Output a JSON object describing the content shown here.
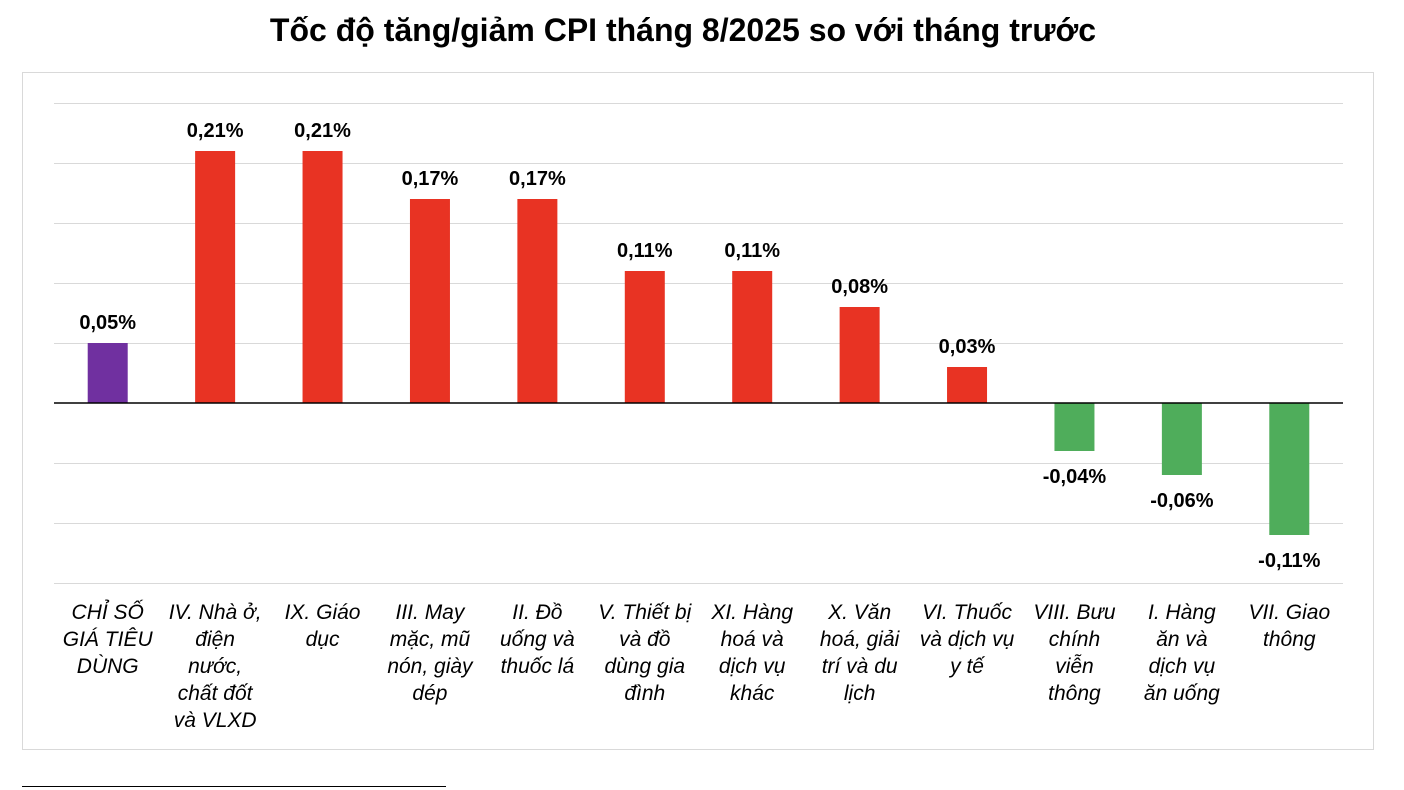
{
  "chart_data": {
    "type": "bar",
    "title": "Tốc độ tăng/giảm CPI tháng 8/2025 so với tháng trước",
    "categories": [
      "CHỈ SỐ GIÁ TIÊU DÙNG",
      "IV. Nhà ở, điện nước, chất đốt và VLXD",
      "IX. Giáo dục",
      "III. May mặc, mũ nón, giày dép",
      "II. Đồ uống và thuốc lá",
      "V. Thiết bị và đồ dùng gia đình",
      "XI. Hàng hoá và dịch vụ khác",
      "X. Văn hoá, giải trí và du lịch",
      "VI. Thuốc và dịch vụ y tế",
      "VIII. Bưu chính viễn thông",
      "I. Hàng ăn và dịch vụ ăn uống",
      "VII. Giao thông"
    ],
    "category_lines": [
      [
        "CHỈ SỐ",
        "GIÁ TIÊU",
        "DÙNG"
      ],
      [
        "IV. Nhà ở,",
        "điện",
        "nước,",
        "chất đốt",
        "và VLXD"
      ],
      [
        "IX. Giáo",
        "dục"
      ],
      [
        "III. May",
        "mặc, mũ",
        "nón, giày",
        "dép"
      ],
      [
        "II. Đồ",
        "uống và",
        "thuốc lá"
      ],
      [
        "V. Thiết bị",
        "và đồ",
        "dùng gia",
        "đình"
      ],
      [
        "XI. Hàng",
        "hoá và",
        "dịch vụ",
        "khác"
      ],
      [
        "X. Văn",
        "hoá, giải",
        "trí và du",
        "lịch"
      ],
      [
        "VI. Thuốc",
        "và dịch vụ",
        "y tế"
      ],
      [
        "VIII. Bưu",
        "chính",
        "viễn",
        "thông"
      ],
      [
        "I. Hàng",
        "ăn và",
        "dịch vụ",
        "ăn uống"
      ],
      [
        "VII. Giao",
        "thông"
      ]
    ],
    "values": [
      0.05,
      0.21,
      0.21,
      0.17,
      0.17,
      0.11,
      0.11,
      0.08,
      0.03,
      -0.04,
      -0.06,
      -0.11
    ],
    "value_labels": [
      "0,05%",
      "0,21%",
      "0,21%",
      "0,17%",
      "0,17%",
      "0,11%",
      "0,11%",
      "0,08%",
      "0,03%",
      "-0,04%",
      "-0,06%",
      "-0,11%"
    ],
    "ylim": [
      -0.15,
      0.25
    ],
    "grid": true,
    "legend": "none",
    "colors": {
      "total": "#7030a0",
      "positive": "#e83323",
      "negative": "#4fad5b",
      "grid": "#d9d9d9",
      "axis": "#000000"
    }
  }
}
